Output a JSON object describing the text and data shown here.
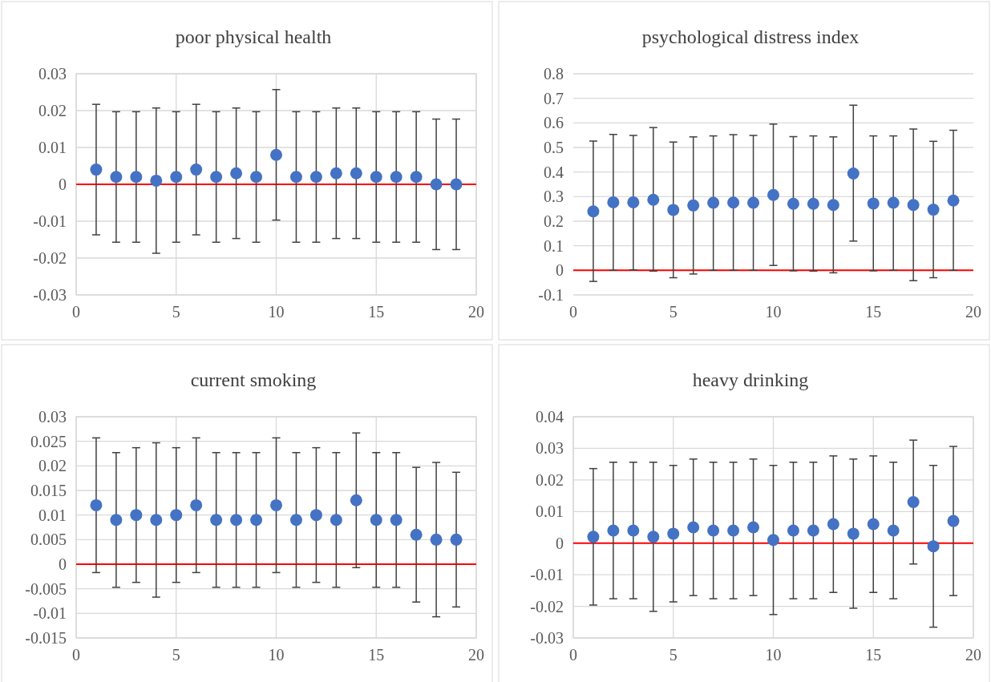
{
  "chart_data": [
    {
      "type": "scatter",
      "title": "poor physical health",
      "x": [
        1,
        2,
        3,
        4,
        5,
        6,
        7,
        8,
        9,
        10,
        11,
        12,
        13,
        14,
        15,
        16,
        17,
        18,
        19
      ],
      "xlim": [
        0,
        20
      ],
      "xticks": [
        0,
        5,
        10,
        15,
        20
      ],
      "ylim": [
        -0.03,
        0.03
      ],
      "yticks": [
        -0.03,
        -0.02,
        -0.01,
        0,
        0.01,
        0.02,
        0.03
      ],
      "grid": true,
      "marker": "circle",
      "series": [
        {
          "color": "#4472c4",
          "values": [
            0.004,
            0.002,
            0.002,
            0.001,
            0.002,
            0.004,
            0.002,
            0.003,
            0.002,
            0.008,
            0.002,
            0.002,
            0.003,
            0.003,
            0.002,
            0.002,
            0.002,
            0,
            0
          ],
          "errors": [
            0.0177,
            0.0177,
            0.0177,
            0.0197,
            0.0177,
            0.0177,
            0.0177,
            0.0177,
            0.0177,
            0.0177,
            0.0177,
            0.0177,
            0.0177,
            0.0177,
            0.0177,
            0.0177,
            0.0177,
            0.0177,
            0.0177
          ]
        }
      ],
      "ref_lines": [
        {
          "axis": "y",
          "value": 0,
          "color": "#ff0000"
        }
      ]
    },
    {
      "type": "scatter",
      "title": "psychological distress index",
      "x": [
        1,
        2,
        3,
        4,
        5,
        6,
        7,
        8,
        9,
        10,
        11,
        12,
        13,
        14,
        15,
        16,
        17,
        18,
        19
      ],
      "xlim": [
        0,
        20
      ],
      "xticks": [
        0,
        5,
        10,
        15,
        20
      ],
      "ylim": [
        -0.1,
        0.8
      ],
      "yticks": [
        -0.1,
        0,
        0.1,
        0.2,
        0.3,
        0.4,
        0.5,
        0.6,
        0.7,
        0.8
      ],
      "grid": "y",
      "marker": "circle",
      "series": [
        {
          "color": "#4472c4",
          "values": [
            0.24,
            0.277,
            0.277,
            0.287,
            0.246,
            0.264,
            0.275,
            0.276,
            0.275,
            0.307,
            0.271,
            0.271,
            0.266,
            0.394,
            0.272,
            0.275,
            0.266,
            0.247,
            0.284
          ],
          "errors": [
            [
              -0.045,
              0.526
            ],
            [
              0,
              0.553
            ],
            [
              0.002,
              0.549
            ],
            [
              -0.003,
              0.581
            ],
            [
              -0.03,
              0.522
            ],
            [
              -0.015,
              0.543
            ],
            [
              0,
              0.547
            ],
            [
              0,
              0.552
            ],
            [
              0,
              0.549
            ],
            [
              0.02,
              0.595
            ],
            [
              -0.002,
              0.544
            ],
            [
              -0.003,
              0.547
            ],
            [
              -0.01,
              0.543
            ],
            [
              0.119,
              0.672
            ],
            [
              -0.002,
              0.547
            ],
            [
              0,
              0.547
            ],
            [
              -0.042,
              0.575
            ],
            [
              -0.03,
              0.525
            ],
            [
              0,
              0.57
            ]
          ]
        }
      ],
      "ref_lines": [
        {
          "axis": "y",
          "value": 0,
          "color": "#ff0000"
        }
      ]
    },
    {
      "type": "scatter",
      "title": "current smoking",
      "x": [
        1,
        2,
        3,
        4,
        5,
        6,
        7,
        8,
        9,
        10,
        11,
        12,
        13,
        14,
        15,
        16,
        17,
        18,
        19
      ],
      "xlim": [
        0,
        20
      ],
      "xticks": [
        0,
        5,
        10,
        15,
        20
      ],
      "ylim": [
        -0.015,
        0.03
      ],
      "yticks": [
        -0.015,
        -0.01,
        -0.005,
        0,
        0.005,
        0.01,
        0.015,
        0.02,
        0.025,
        0.03
      ],
      "grid": true,
      "marker": "circle",
      "series": [
        {
          "color": "#4472c4",
          "values": [
            0.012,
            0.009,
            0.01,
            0.009,
            0.01,
            0.012,
            0.009,
            0.009,
            0.009,
            0.012,
            0.009,
            0.01,
            0.009,
            0.013,
            0.009,
            0.009,
            0.006,
            0.005,
            0.005
          ],
          "errors": [
            0.0137,
            0.0137,
            0.0137,
            0.0157,
            0.0137,
            0.0137,
            0.0137,
            0.0137,
            0.0137,
            0.0137,
            0.0137,
            0.0137,
            0.0137,
            0.0137,
            0.0137,
            0.0137,
            0.0137,
            0.0157,
            0.0137
          ]
        }
      ],
      "ref_lines": [
        {
          "axis": "y",
          "value": 0,
          "color": "#ff0000"
        }
      ]
    },
    {
      "type": "scatter",
      "title": "heavy drinking",
      "x": [
        1,
        2,
        3,
        4,
        5,
        6,
        7,
        8,
        9,
        10,
        11,
        12,
        13,
        14,
        15,
        16,
        17,
        18,
        19
      ],
      "xlim": [
        0,
        20
      ],
      "xticks": [
        0,
        5,
        10,
        15,
        20
      ],
      "ylim": [
        -0.03,
        0.04
      ],
      "yticks": [
        -0.03,
        -0.02,
        -0.01,
        0,
        0.01,
        0.02,
        0.03,
        0.04
      ],
      "grid": true,
      "marker": "circle",
      "series": [
        {
          "color": "#4472c4",
          "values": [
            0.002,
            0.004,
            0.004,
            0.002,
            0.003,
            0.005,
            0.004,
            0.004,
            0.005,
            0.001,
            0.004,
            0.004,
            0.006,
            0.003,
            0.006,
            0.004,
            0.013,
            -0.001,
            0.007
          ],
          "errors": [
            0.0216,
            0.0216,
            0.0216,
            0.0236,
            0.0216,
            0.0216,
            0.0216,
            0.0216,
            0.0216,
            0.0236,
            0.0216,
            0.0216,
            0.0216,
            0.0236,
            0.0216,
            0.0216,
            0.0196,
            0.0256,
            0.0236
          ]
        }
      ],
      "ref_lines": [
        {
          "axis": "y",
          "value": 0,
          "color": "#ff0000"
        }
      ]
    }
  ]
}
